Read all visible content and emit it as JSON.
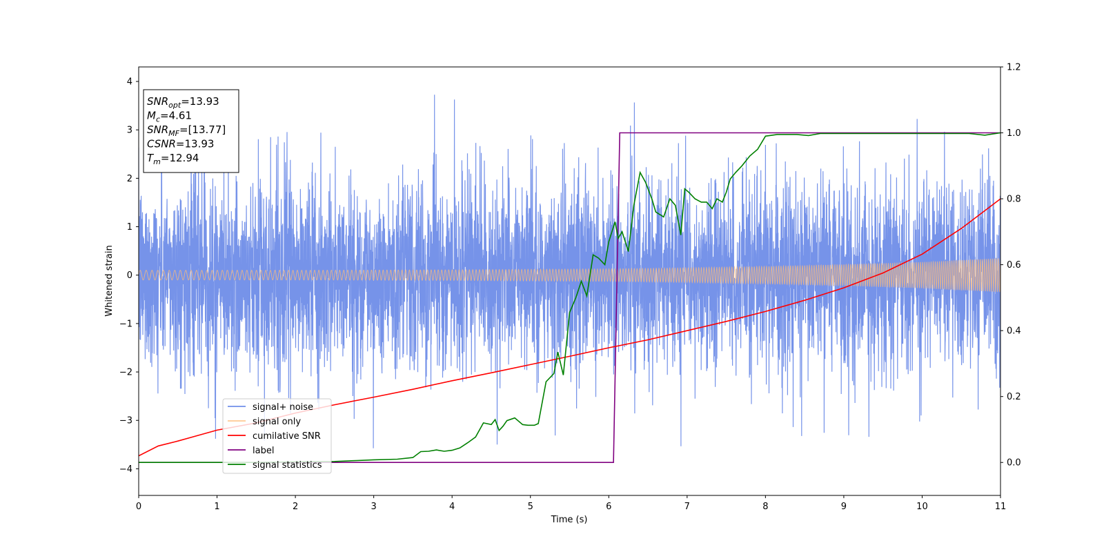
{
  "chart_data": {
    "type": "line",
    "xlabel": "Time (s)",
    "ylabel": "Whitened strain",
    "xlim": [
      0,
      11
    ],
    "ylim": [
      -4.55,
      4.3
    ],
    "y2lim": [
      -0.1,
      1.2
    ],
    "xticks": [
      0,
      1,
      2,
      3,
      4,
      5,
      6,
      7,
      8,
      9,
      10,
      11
    ],
    "yticks": [
      -4,
      -3,
      -2,
      -1,
      0,
      1,
      2,
      3,
      4
    ],
    "y2ticks": [
      0.0,
      0.2,
      0.4,
      0.6,
      0.8,
      1.0,
      1.2
    ],
    "ytick_labels": [
      "−4",
      "−3",
      "−2",
      "−1",
      "0",
      "1",
      "2",
      "3",
      "4"
    ],
    "y2tick_labels": [
      "0.0",
      "0.2",
      "0.4",
      "0.6",
      "0.8",
      "1.0",
      "1.2"
    ],
    "grid": false,
    "legend_position": "lower-left",
    "info_box": {
      "position": "top-left",
      "lines": [
        {
          "sym": "SNR",
          "sub": "opt",
          "val": "=13.93"
        },
        {
          "sym": "M",
          "sub": "c",
          "val": "=4.61"
        },
        {
          "sym": "SNR",
          "sub": "MF",
          "val": "=[13.77]"
        },
        {
          "sym": "CSNR",
          "sub": "",
          "val": "=13.93"
        },
        {
          "sym": "T",
          "sub": "m",
          "val": "=12.94"
        }
      ]
    },
    "series": [
      {
        "name": "signal+ noise",
        "color": "#4169e1",
        "axis": "left",
        "description_values": {
          "envelope_typical": [
            -1.9,
            2.1
          ],
          "peak_max": 3.8,
          "peak_min": -4.15
        }
      },
      {
        "name": "signal only",
        "color": "#ffbb78",
        "axis": "left",
        "amplitude_envelope": {
          "x": [
            0,
            2,
            4,
            6,
            7,
            8,
            9,
            10,
            11
          ],
          "y": [
            0.1,
            0.1,
            0.11,
            0.13,
            0.15,
            0.18,
            0.22,
            0.27,
            0.35
          ]
        }
      },
      {
        "name": "cumilative SNR",
        "color": "#ff0000",
        "axis": "right",
        "x": [
          0,
          0.25,
          0.5,
          1,
          1.5,
          2,
          2.5,
          3,
          3.5,
          4,
          4.5,
          5,
          5.5,
          6,
          6.5,
          7,
          7.5,
          8,
          8.5,
          9,
          9.5,
          10,
          10.5,
          11
        ],
        "y": [
          0.02,
          0.05,
          0.065,
          0.098,
          0.12,
          0.15,
          0.175,
          0.198,
          0.222,
          0.248,
          0.272,
          0.297,
          0.322,
          0.348,
          0.372,
          0.4,
          0.428,
          0.458,
          0.492,
          0.53,
          0.575,
          0.632,
          0.71,
          0.8
        ]
      },
      {
        "name": "label",
        "color": "#800080",
        "axis": "right",
        "x": [
          0,
          6.06,
          6.14,
          11
        ],
        "y": [
          0.0,
          0.0,
          1.0,
          1.0
        ]
      },
      {
        "name": "signal statistics",
        "color": "#008000",
        "axis": "right",
        "x": [
          0,
          0.5,
          1,
          1.5,
          2,
          2.5,
          2.8,
          3.0,
          3.3,
          3.5,
          3.6,
          3.7,
          3.8,
          3.9,
          4.0,
          4.1,
          4.2,
          4.3,
          4.4,
          4.5,
          4.55,
          4.6,
          4.65,
          4.7,
          4.8,
          4.9,
          4.97,
          5.05,
          5.1,
          5.2,
          5.3,
          5.35,
          5.42,
          5.5,
          5.58,
          5.65,
          5.72,
          5.8,
          5.87,
          5.95,
          6.0,
          6.08,
          6.12,
          6.17,
          6.25,
          6.32,
          6.4,
          6.47,
          6.55,
          6.6,
          6.7,
          6.78,
          6.85,
          6.92,
          6.97,
          7.02,
          7.1,
          7.18,
          7.25,
          7.32,
          7.38,
          7.45,
          7.5,
          7.55,
          7.62,
          7.7,
          7.8,
          7.9,
          8.0,
          8.15,
          8.3,
          8.4,
          8.55,
          8.7,
          8.8,
          9.0,
          9.2,
          9.4,
          9.6,
          9.8,
          10.0,
          10.2,
          10.4,
          10.6,
          10.8,
          11.0
        ],
        "y": [
          0.0,
          0.0,
          0.0,
          0.0,
          0.002,
          0.003,
          0.006,
          0.008,
          0.01,
          0.015,
          0.033,
          0.034,
          0.038,
          0.034,
          0.037,
          0.044,
          0.06,
          0.077,
          0.12,
          0.115,
          0.13,
          0.097,
          0.11,
          0.127,
          0.135,
          0.115,
          0.113,
          0.113,
          0.118,
          0.245,
          0.27,
          0.335,
          0.265,
          0.455,
          0.5,
          0.55,
          0.505,
          0.63,
          0.62,
          0.6,
          0.67,
          0.73,
          0.68,
          0.7,
          0.64,
          0.78,
          0.88,
          0.85,
          0.8,
          0.76,
          0.745,
          0.8,
          0.78,
          0.69,
          0.83,
          0.82,
          0.8,
          0.79,
          0.79,
          0.77,
          0.8,
          0.79,
          0.82,
          0.86,
          0.88,
          0.9,
          0.93,
          0.95,
          0.99,
          0.995,
          0.995,
          0.995,
          0.992,
          0.998,
          0.998,
          0.998,
          0.998,
          0.998,
          0.998,
          0.998,
          0.998,
          0.998,
          0.998,
          0.998,
          0.993,
          1.0
        ]
      }
    ]
  }
}
